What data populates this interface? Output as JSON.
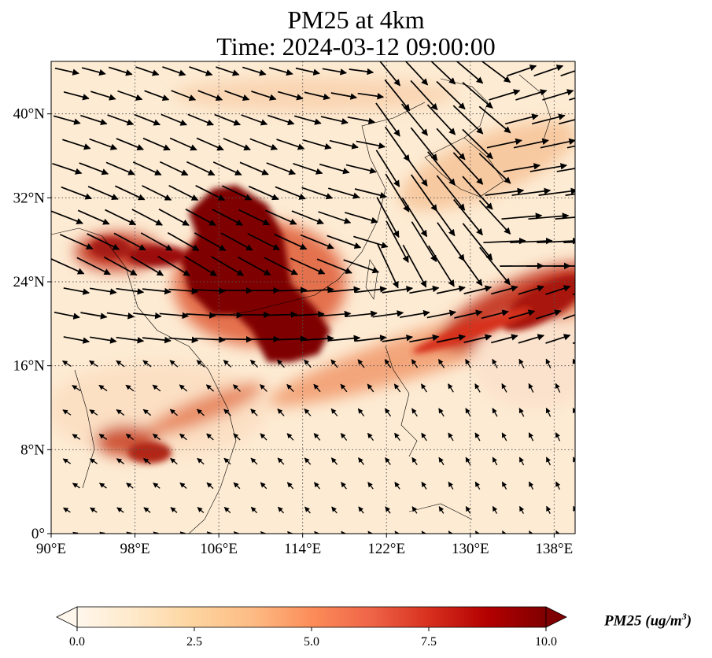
{
  "title": {
    "line1": "PM25 at 4km",
    "line2": "Time: 2024-03-12 09:00:00"
  },
  "map": {
    "lon_range": [
      90,
      140
    ],
    "lat_range": [
      0,
      45
    ],
    "gridlines": true,
    "x_ticks": [
      "90°E",
      "98°E",
      "106°E",
      "114°E",
      "122°E",
      "130°E",
      "138°E"
    ],
    "x_tick_values": [
      90,
      98,
      106,
      114,
      122,
      130,
      138
    ],
    "y_ticks": [
      "0°",
      "8°N",
      "16°N",
      "24°N",
      "32°N",
      "40°N"
    ],
    "y_tick_values": [
      0,
      8,
      16,
      24,
      32,
      40
    ],
    "overlay": "wind vectors",
    "colormap": "OrRd"
  },
  "colorbar": {
    "label_prefix": "PM25 (ug/m",
    "label_sup": "3",
    "label_suffix": ")",
    "ticks": [
      "0.0",
      "2.5",
      "5.0",
      "7.5",
      "10.0"
    ],
    "tick_values": [
      0,
      2.5,
      5,
      7.5,
      10
    ],
    "range": [
      0,
      10
    ],
    "extend": "both",
    "colors": [
      "#fff7ec",
      "#fee8c8",
      "#fdd49e",
      "#fdbb84",
      "#fc8d59",
      "#ef6548",
      "#d7301f",
      "#b30000",
      "#7f0000"
    ]
  }
}
